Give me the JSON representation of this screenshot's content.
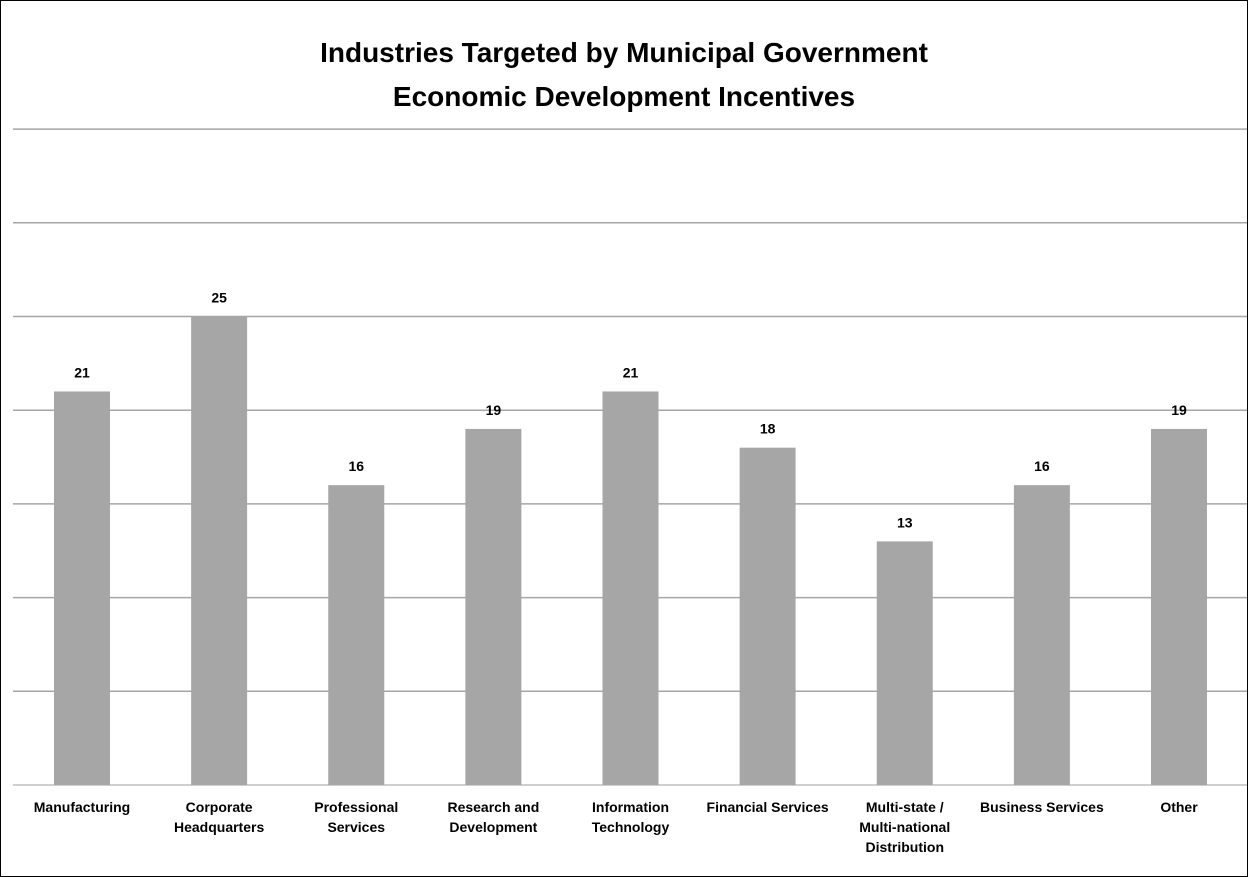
{
  "chart_data": {
    "type": "bar",
    "title": [
      "Industries Targeted by Municipal Government",
      "Economic Development Incentives"
    ],
    "categories": [
      "Manufacturing",
      "Corporate\nHeadquarters",
      "Professional\nServices",
      "Research and\nDevelopment",
      "Information\nTechnology",
      "Financial Services",
      "Multi-state /\nMulti-national\nDistribution",
      "Business Services",
      "Other"
    ],
    "values": [
      21,
      25,
      16,
      19,
      21,
      18,
      13,
      16,
      19
    ],
    "ylim": [
      0,
      35
    ],
    "grid": true,
    "y_tick_step": 5,
    "xlabel": "",
    "ylabel": "",
    "colors": {
      "bar": "#a6a6a6",
      "grid": "#a6a6a6",
      "text": "#000000"
    }
  }
}
